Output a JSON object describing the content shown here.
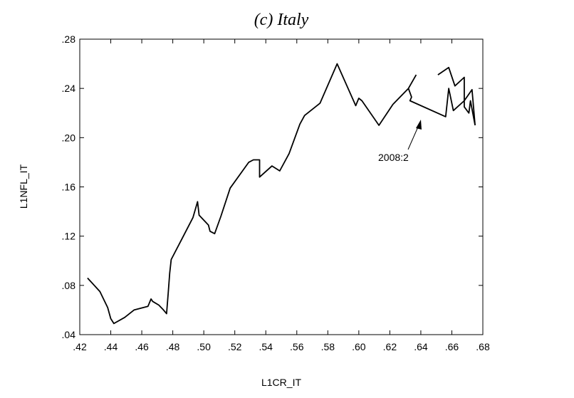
{
  "chart_data": {
    "type": "line",
    "title": "(c) Italy",
    "x_label": "L1CR_IT",
    "y_label": "L1NFL_IT",
    "annotation": "2008:2",
    "series": [
      {
        "name": "L1NFL_IT",
        "color": "#000000",
        "x": [
          0.425,
          0.433,
          0.438,
          0.44,
          0.442,
          0.449,
          0.455,
          0.464,
          0.466,
          0.467,
          0.471,
          0.474,
          0.476,
          0.477,
          0.478,
          0.479,
          0.486,
          0.493,
          0.496,
          0.497,
          0.503,
          0.504,
          0.507,
          0.511,
          0.517,
          0.529,
          0.532,
          0.536,
          0.536,
          0.544,
          0.549,
          0.555,
          0.562,
          0.565,
          0.575,
          0.586,
          0.598,
          0.6,
          0.602,
          0.613,
          0.622,
          0.632,
          0.637,
          null,
          0.632,
          0.634,
          0.633,
          0.656,
          0.658,
          0.661,
          0.668,
          0.673,
          0.675,
          null,
          0.651,
          0.658,
          0.662,
          0.668,
          0.668,
          0.671,
          0.672,
          0.675
        ],
        "y": [
          0.086,
          0.075,
          0.062,
          0.053,
          0.049,
          0.054,
          0.06,
          0.063,
          0.069,
          0.067,
          0.064,
          0.06,
          0.057,
          0.073,
          0.09,
          0.101,
          0.118,
          0.135,
          0.148,
          0.137,
          0.129,
          0.124,
          0.122,
          0.136,
          0.159,
          0.18,
          0.182,
          0.182,
          0.168,
          0.177,
          0.173,
          0.187,
          0.211,
          0.218,
          0.228,
          0.26,
          0.226,
          0.232,
          0.23,
          0.21,
          0.227,
          0.24,
          0.251,
          null,
          0.24,
          0.233,
          0.23,
          0.217,
          0.24,
          0.222,
          0.23,
          0.239,
          0.21,
          null,
          0.251,
          0.257,
          0.242,
          0.249,
          0.225,
          0.22,
          0.23,
          0.21
        ]
      }
    ],
    "xlim": [
      0.42,
      0.68
    ],
    "xticks": [
      {
        "value": 0.42,
        "label": ".42"
      },
      {
        "value": 0.44,
        "label": ".44"
      },
      {
        "value": 0.46,
        "label": ".46"
      },
      {
        "value": 0.48,
        "label": ".48"
      },
      {
        "value": 0.5,
        "label": ".50"
      },
      {
        "value": 0.52,
        "label": ".52"
      },
      {
        "value": 0.54,
        "label": ".54"
      },
      {
        "value": 0.56,
        "label": ".56"
      },
      {
        "value": 0.58,
        "label": ".58"
      },
      {
        "value": 0.6,
        "label": ".60"
      },
      {
        "value": 0.62,
        "label": ".62"
      },
      {
        "value": 0.64,
        "label": ".64"
      },
      {
        "value": 0.66,
        "label": ".66"
      },
      {
        "value": 0.68,
        "label": ".68"
      }
    ],
    "ylim": [
      0.04,
      0.28
    ],
    "yticks": [
      {
        "value": 0.04,
        "label": ".04"
      },
      {
        "value": 0.08,
        "label": ".08"
      },
      {
        "value": 0.12,
        "label": ".12"
      },
      {
        "value": 0.16,
        "label": ".16"
      },
      {
        "value": 0.2,
        "label": ".20"
      },
      {
        "value": 0.24,
        "label": ".24"
      },
      {
        "value": 0.28,
        "label": ".28"
      }
    ]
  }
}
